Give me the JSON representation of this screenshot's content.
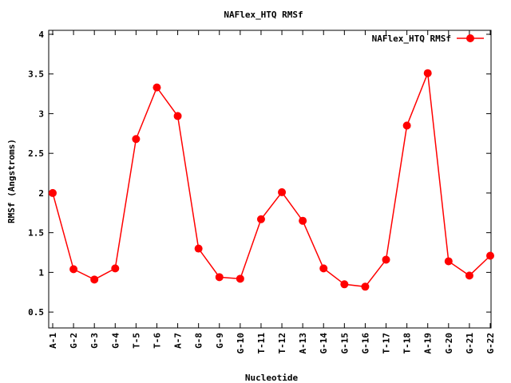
{
  "chart_data": {
    "type": "line",
    "title": "NAFlex_HTQ RMSf",
    "xlabel": "Nucleotide",
    "ylabel": "RMSf (Angstroms)",
    "ylim": [
      0.3,
      4.05
    ],
    "yticks": [
      0.5,
      1,
      1.5,
      2,
      2.5,
      3,
      3.5,
      4
    ],
    "ytick_labels": [
      "0.5",
      "1",
      "1.5",
      "2",
      "2.5",
      "3",
      "3.5",
      "4"
    ],
    "grid": false,
    "legend_position": "top-right",
    "categories": [
      "A-1",
      "G-2",
      "G-3",
      "G-4",
      "T-5",
      "T-6",
      "A-7",
      "G-8",
      "G-9",
      "G-10",
      "T-11",
      "T-12",
      "A-13",
      "G-14",
      "G-15",
      "G-16",
      "T-17",
      "T-18",
      "A-19",
      "G-20",
      "G-21",
      "G-22"
    ],
    "series": [
      {
        "name": "NAFlex_HTQ RMSf",
        "color": "#ff0000",
        "values": [
          2.0,
          1.04,
          0.91,
          1.05,
          2.68,
          3.33,
          2.97,
          1.3,
          0.94,
          0.92,
          1.67,
          2.01,
          1.65,
          1.05,
          0.85,
          0.82,
          1.16,
          2.85,
          3.51,
          1.14,
          0.96,
          1.21
        ]
      }
    ]
  }
}
